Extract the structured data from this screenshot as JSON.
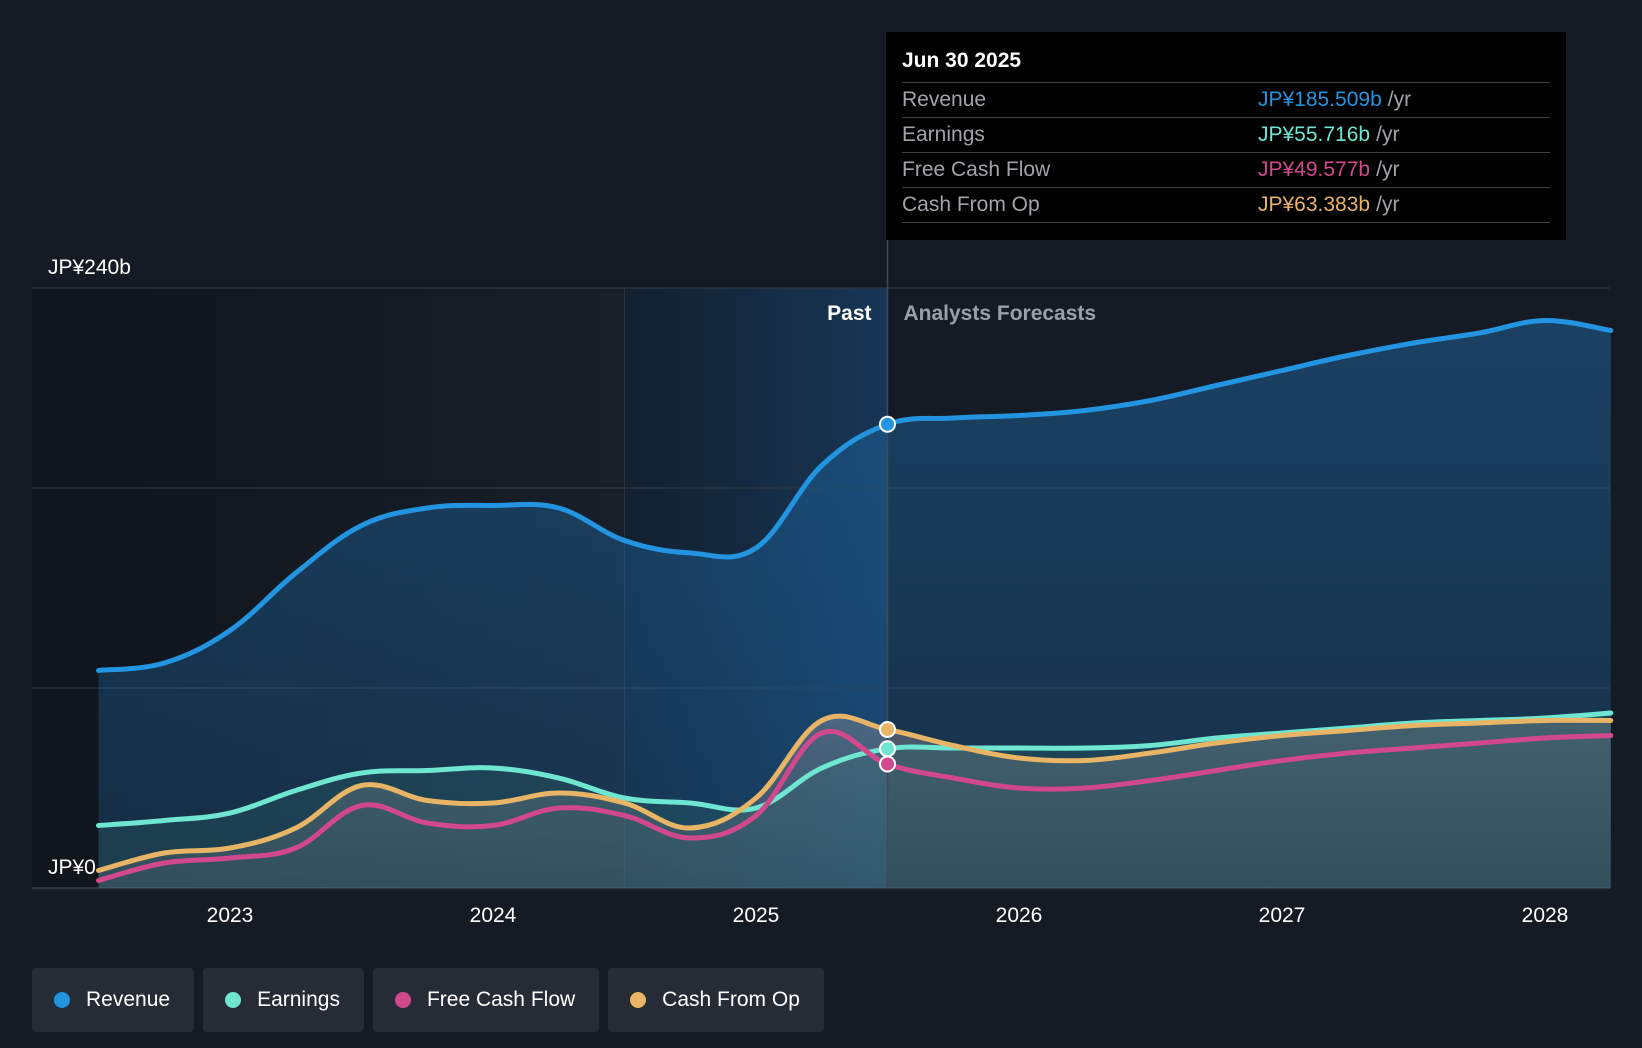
{
  "chart_data": {
    "type": "area",
    "title": "",
    "ylim": [
      0,
      240
    ],
    "y_axis": {
      "unit": "JP¥",
      "labels": [
        {
          "value": 0,
          "text": "JP¥0"
        },
        {
          "value": 240,
          "text": "JP¥240b"
        }
      ]
    },
    "x_axis": {
      "min": 2022.5,
      "max": 2028.25,
      "ticks": [
        "2023",
        "2024",
        "2025",
        "2026",
        "2027",
        "2028"
      ]
    },
    "divider": {
      "x": 2025.5,
      "past_label": "Past",
      "forecast_label": "Analysts Forecasts"
    },
    "highlight_range": [
      2024.5,
      2025.5
    ],
    "series": [
      {
        "name": "Revenue",
        "color": "#2394e0",
        "points": [
          [
            2022.5,
            87
          ],
          [
            2022.75,
            90
          ],
          [
            2023.0,
            103
          ],
          [
            2023.25,
            126
          ],
          [
            2023.5,
            145
          ],
          [
            2023.75,
            152
          ],
          [
            2024.0,
            153
          ],
          [
            2024.25,
            152
          ],
          [
            2024.5,
            139
          ],
          [
            2024.75,
            134
          ],
          [
            2025.0,
            136
          ],
          [
            2025.25,
            169
          ],
          [
            2025.5,
            185.5
          ],
          [
            2025.75,
            188
          ],
          [
            2026.0,
            189
          ],
          [
            2026.25,
            191
          ],
          [
            2026.5,
            195
          ],
          [
            2026.75,
            201
          ],
          [
            2027.0,
            207
          ],
          [
            2027.25,
            213
          ],
          [
            2027.5,
            218
          ],
          [
            2027.75,
            222
          ],
          [
            2028.0,
            227
          ],
          [
            2028.25,
            223
          ]
        ]
      },
      {
        "name": "Earnings",
        "color": "#6fe6d1",
        "points": [
          [
            2022.5,
            25
          ],
          [
            2022.75,
            27
          ],
          [
            2023.0,
            30
          ],
          [
            2023.25,
            39
          ],
          [
            2023.5,
            46
          ],
          [
            2023.75,
            47
          ],
          [
            2024.0,
            48
          ],
          [
            2024.25,
            44
          ],
          [
            2024.5,
            36
          ],
          [
            2024.75,
            34
          ],
          [
            2025.0,
            32
          ],
          [
            2025.25,
            48
          ],
          [
            2025.5,
            55.7
          ],
          [
            2025.75,
            56
          ],
          [
            2026.0,
            56
          ],
          [
            2026.25,
            56
          ],
          [
            2026.5,
            57
          ],
          [
            2026.75,
            60
          ],
          [
            2027.0,
            62
          ],
          [
            2027.25,
            64
          ],
          [
            2027.5,
            66
          ],
          [
            2027.75,
            67
          ],
          [
            2028.0,
            68
          ],
          [
            2028.25,
            70
          ]
        ]
      },
      {
        "name": "Free Cash Flow",
        "color": "#d2488d",
        "points": [
          [
            2022.5,
            3
          ],
          [
            2022.75,
            10
          ],
          [
            2023.0,
            12
          ],
          [
            2023.25,
            16
          ],
          [
            2023.5,
            33
          ],
          [
            2023.75,
            26
          ],
          [
            2024.0,
            25
          ],
          [
            2024.25,
            32
          ],
          [
            2024.5,
            29
          ],
          [
            2024.75,
            20
          ],
          [
            2025.0,
            29
          ],
          [
            2025.25,
            62
          ],
          [
            2025.5,
            49.6
          ],
          [
            2025.75,
            44
          ],
          [
            2026.0,
            40
          ],
          [
            2026.25,
            40
          ],
          [
            2026.5,
            43
          ],
          [
            2026.75,
            47
          ],
          [
            2027.0,
            51
          ],
          [
            2027.25,
            54
          ],
          [
            2027.5,
            56
          ],
          [
            2027.75,
            58
          ],
          [
            2028.0,
            60
          ],
          [
            2028.25,
            61
          ]
        ]
      },
      {
        "name": "Cash From Op",
        "color": "#e8b465",
        "points": [
          [
            2022.5,
            7
          ],
          [
            2022.75,
            14
          ],
          [
            2023.0,
            16
          ],
          [
            2023.25,
            24
          ],
          [
            2023.5,
            41
          ],
          [
            2023.75,
            35
          ],
          [
            2024.0,
            34
          ],
          [
            2024.25,
            38
          ],
          [
            2024.5,
            34
          ],
          [
            2024.75,
            24
          ],
          [
            2025.0,
            36
          ],
          [
            2025.25,
            67
          ],
          [
            2025.5,
            63.4
          ],
          [
            2025.75,
            57
          ],
          [
            2026.0,
            52
          ],
          [
            2026.25,
            51
          ],
          [
            2026.5,
            54
          ],
          [
            2026.75,
            58
          ],
          [
            2027.0,
            61
          ],
          [
            2027.25,
            63
          ],
          [
            2027.5,
            65
          ],
          [
            2027.75,
            66
          ],
          [
            2028.0,
            67
          ],
          [
            2028.25,
            67
          ]
        ]
      }
    ]
  },
  "tooltip": {
    "date": "Jun 30 2025",
    "rows": [
      {
        "label": "Revenue",
        "value": "JP¥185.509b",
        "unit": "/yr",
        "color": "#2394e0"
      },
      {
        "label": "Earnings",
        "value": "JP¥55.716b",
        "unit": "/yr",
        "color": "#6fe6d1"
      },
      {
        "label": "Free Cash Flow",
        "value": "JP¥49.577b",
        "unit": "/yr",
        "color": "#d2488d"
      },
      {
        "label": "Cash From Op",
        "value": "JP¥63.383b",
        "unit": "/yr",
        "color": "#e8b465"
      }
    ]
  },
  "legend": [
    {
      "label": "Revenue",
      "color": "#2394e0"
    },
    {
      "label": "Earnings",
      "color": "#6fe6d1"
    },
    {
      "label": "Free Cash Flow",
      "color": "#d2488d"
    },
    {
      "label": "Cash From Op",
      "color": "#e8b465"
    }
  ]
}
